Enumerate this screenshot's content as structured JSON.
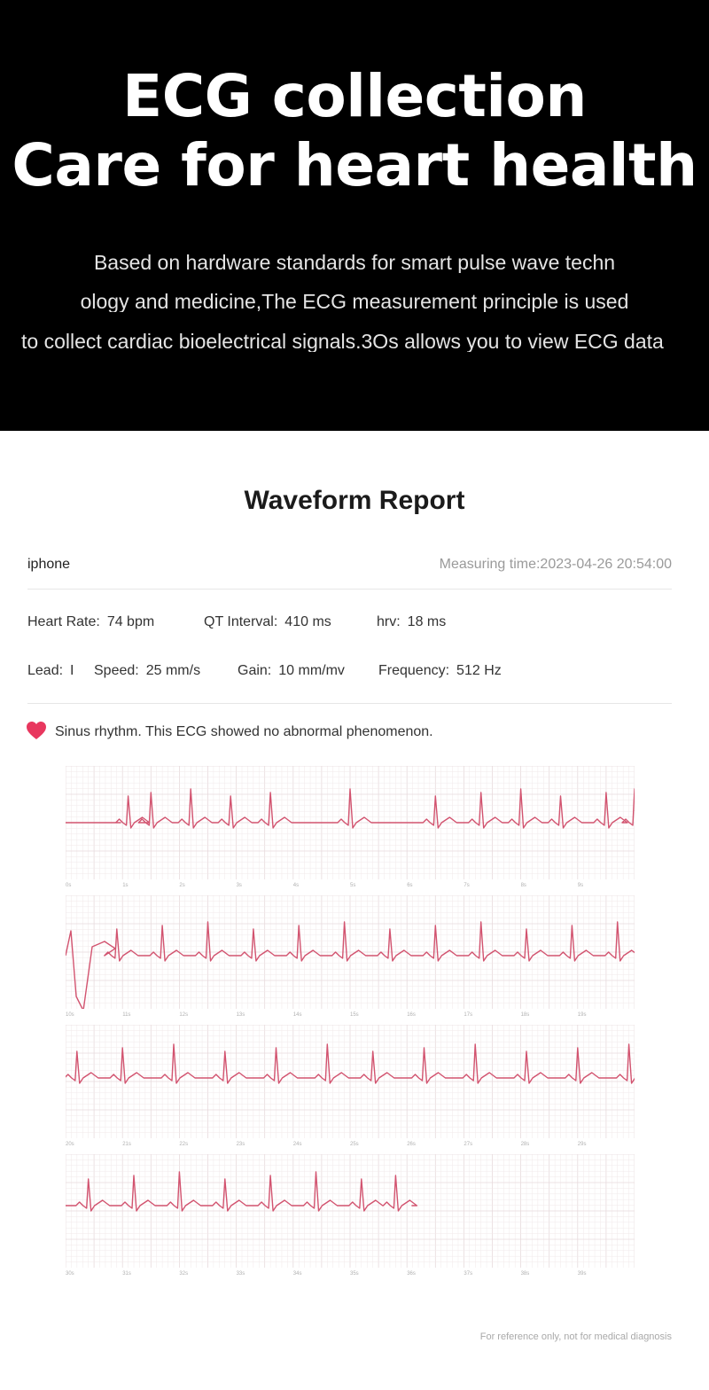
{
  "hero": {
    "title_line1": "ECG collection",
    "title_line2": "Care for heart health",
    "desc_line1": "Based on hardware standards for smart pulse wave techn",
    "desc_line2": "ology and medicine,The ECG measurement principle is used",
    "desc_line3": "to collect cardiac bioelectrical signals.3Os allows you to view ECG data"
  },
  "report": {
    "title": "Waveform Report",
    "device": "iphone",
    "measuring_time": "Measuring time:2023-04-26 20:54:00",
    "heart_rate_label": "Heart Rate:",
    "heart_rate_value": "74 bpm",
    "qt_label": "QT Interval:",
    "qt_value": "410 ms",
    "hrv_label": "hrv:",
    "hrv_value": "18 ms",
    "lead_label": "Lead:",
    "lead_value": "I",
    "speed_label": "Speed:",
    "speed_value": "25 mm/s",
    "gain_label": "Gain:",
    "gain_value": "10 mm/mv",
    "frequency_label": "Frequency:",
    "frequency_value": "512 Hz",
    "verdict": "Sinus rhythm. This ECG showed no abnormal phenomenon.",
    "disclaimer": "For reference only, not for medical diagnosis"
  },
  "colors": {
    "hero_bg": "#000000",
    "trace": "#d2536f",
    "grid_minor": "#f1e9ea",
    "grid_major": "#e7dadc",
    "heart": "#e8375e"
  },
  "icons": {
    "heart": "heart-icon"
  },
  "strips": [
    {
      "ticks": [
        "0s",
        "1s",
        "2s",
        "3s",
        "4s",
        "5s",
        "6s",
        "7s",
        "8s",
        "9s"
      ],
      "beats": [
        0.11,
        0.15,
        0.22,
        0.29,
        0.36,
        0.5,
        0.65,
        0.73,
        0.8,
        0.87,
        0.95,
        1.0
      ]
    },
    {
      "ticks": [
        "10s",
        "11s",
        "12s",
        "13s",
        "14s",
        "15s",
        "16s",
        "17s",
        "18s",
        "19s"
      ],
      "beats": [
        0.09,
        0.17,
        0.25,
        0.33,
        0.41,
        0.49,
        0.57,
        0.65,
        0.73,
        0.81,
        0.89,
        0.97
      ]
    },
    {
      "ticks": [
        "20s",
        "21s",
        "22s",
        "23s",
        "24s",
        "25s",
        "26s",
        "27s",
        "28s",
        "29s"
      ],
      "beats": [
        0.02,
        0.1,
        0.19,
        0.28,
        0.37,
        0.46,
        0.54,
        0.63,
        0.72,
        0.81,
        0.9,
        0.99
      ]
    },
    {
      "ticks": [
        "30s",
        "31s",
        "32s",
        "33s",
        "34s",
        "35s",
        "36s",
        "37s",
        "38s",
        "39s"
      ],
      "beats": [
        0.04,
        0.12,
        0.2,
        0.28,
        0.36,
        0.44,
        0.52,
        0.58
      ]
    }
  ]
}
